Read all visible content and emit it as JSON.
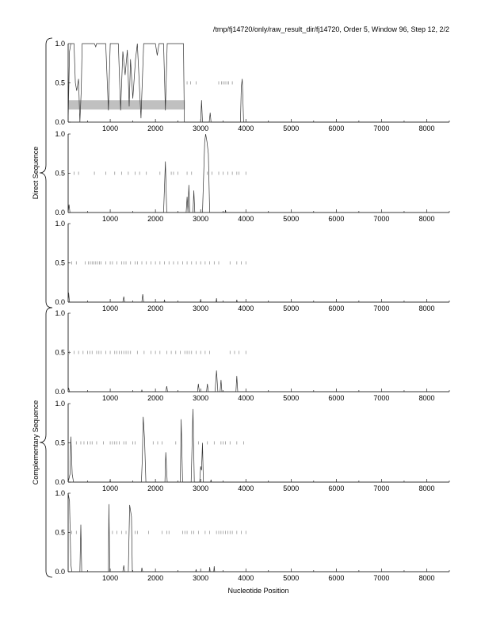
{
  "title": "/tmp/fj14720/only/raw_result_dir/fj14720, Order 5, Window 96, Step 12, 2/2",
  "group_labels": [
    "Direct Sequence",
    "Complementary Sequence"
  ],
  "chart_data": {
    "type": "line",
    "xlabel": "Nucleotide Position",
    "xlim": [
      70,
      8500
    ],
    "ylim": [
      0,
      1
    ],
    "x_ticks": [
      1000,
      2000,
      3000,
      4000,
      5000,
      6000,
      7000,
      8000
    ],
    "y_ticks": [
      "0.0",
      "0.5",
      "1.0"
    ],
    "grid": false,
    "colors": {
      "line": "#333333",
      "stop_ticks": "#888888",
      "highlight_bar": "#c0c0c0"
    },
    "panels": [
      {
        "group": "Direct Sequence",
        "highlight_region": {
          "x": [
            70,
            2650
          ],
          "y": [
            0.16,
            0.28
          ]
        },
        "points": [
          [
            70,
            0
          ],
          [
            100,
            0.9
          ],
          [
            130,
            1
          ],
          [
            200,
            1
          ],
          [
            230,
            0.5
          ],
          [
            260,
            0.4
          ],
          [
            300,
            0.55
          ],
          [
            330,
            0
          ],
          [
            360,
            0.4
          ],
          [
            380,
            1
          ],
          [
            650,
            1
          ],
          [
            680,
            0.96
          ],
          [
            700,
            1
          ],
          [
            900,
            1
          ],
          [
            960,
            0.15
          ],
          [
            1000,
            1
          ],
          [
            1180,
            1
          ],
          [
            1230,
            0.15
          ],
          [
            1280,
            0.9
          ],
          [
            1330,
            0.6
          ],
          [
            1380,
            0.92
          ],
          [
            1420,
            0.2
          ],
          [
            1450,
            0.8
          ],
          [
            1500,
            0.3
          ],
          [
            1560,
            0.8
          ],
          [
            1600,
            1
          ],
          [
            1680,
            0.05
          ],
          [
            1740,
            1
          ],
          [
            2000,
            1
          ],
          [
            2040,
            0.85
          ],
          [
            2080,
            1
          ],
          [
            2180,
            1
          ],
          [
            2220,
            0.15
          ],
          [
            2260,
            1
          ],
          [
            2620,
            1
          ],
          [
            2640,
            0
          ],
          [
            3000,
            0
          ],
          [
            3020,
            0.28
          ],
          [
            3040,
            0
          ],
          [
            3190,
            0
          ],
          [
            3210,
            0.12
          ],
          [
            3230,
            0
          ],
          [
            3880,
            0
          ],
          [
            3900,
            0.45
          ],
          [
            3920,
            0.55
          ],
          [
            3950,
            0
          ],
          [
            8500,
            0
          ]
        ],
        "stop_ticks": [
          2700,
          2780,
          2900,
          3400,
          3460,
          3500,
          3540,
          3580,
          3620,
          3700
        ]
      },
      {
        "group": "Direct Sequence",
        "points": [
          [
            70,
            0
          ],
          [
            90,
            0.1
          ],
          [
            110,
            0
          ],
          [
            2180,
            0
          ],
          [
            2220,
            0.65
          ],
          [
            2250,
            0
          ],
          [
            2680,
            0
          ],
          [
            2700,
            0.2
          ],
          [
            2720,
            0
          ],
          [
            2740,
            0.35
          ],
          [
            2760,
            0
          ],
          [
            2830,
            0
          ],
          [
            2850,
            0.28
          ],
          [
            2870,
            0
          ],
          [
            3040,
            0
          ],
          [
            3090,
            0.9
          ],
          [
            3110,
            1
          ],
          [
            3140,
            0.9
          ],
          [
            3170,
            0.75
          ],
          [
            3200,
            0
          ],
          [
            3540,
            0
          ],
          [
            3550,
            0.03
          ],
          [
            3560,
            0
          ],
          [
            8500,
            0
          ]
        ],
        "stop_ticks": [
          200,
          300,
          650,
          900,
          1100,
          1250,
          1400,
          1550,
          1650,
          1800,
          2100,
          2350,
          2400,
          2500,
          2700,
          2800,
          3150,
          3250,
          3400,
          3500,
          3600,
          3700,
          3800,
          3850,
          4000
        ]
      },
      {
        "group": "Direct Sequence",
        "points": [
          [
            70,
            0
          ],
          [
            80,
            0.12
          ],
          [
            100,
            0
          ],
          [
            1280,
            0
          ],
          [
            1300,
            0.07
          ],
          [
            1320,
            0
          ],
          [
            1700,
            0
          ],
          [
            1720,
            0.1
          ],
          [
            1740,
            0
          ],
          [
            2190,
            0
          ],
          [
            2200,
            0.03
          ],
          [
            2210,
            0
          ],
          [
            2990,
            0
          ],
          [
            3000,
            0.03
          ],
          [
            3010,
            0
          ],
          [
            3340,
            0
          ],
          [
            3350,
            0.05
          ],
          [
            3360,
            0
          ],
          [
            3790,
            0
          ],
          [
            3800,
            0.03
          ],
          [
            3810,
            0
          ],
          [
            8500,
            0
          ]
        ],
        "stop_ticks": [
          150,
          250,
          450,
          520,
          560,
          600,
          640,
          680,
          720,
          760,
          800,
          900,
          1000,
          1050,
          1150,
          1250,
          1300,
          1350,
          1450,
          1550,
          1600,
          1700,
          1800,
          1900,
          2000,
          2100,
          2200,
          2300,
          2400,
          2500,
          2600,
          2700,
          2800,
          2900,
          3000,
          3100,
          3200,
          3300,
          3400,
          3650,
          3800,
          3900,
          4000
        ]
      },
      {
        "group": "Complementary Sequence",
        "points": [
          [
            70,
            0
          ],
          [
            80,
            0.05
          ],
          [
            100,
            0
          ],
          [
            1690,
            0
          ],
          [
            1700,
            0.02
          ],
          [
            1710,
            0
          ],
          [
            2230,
            0
          ],
          [
            2250,
            0.07
          ],
          [
            2270,
            0
          ],
          [
            2930,
            0
          ],
          [
            2950,
            0.1
          ],
          [
            2970,
            0
          ],
          [
            3130,
            0
          ],
          [
            3150,
            0.1
          ],
          [
            3170,
            0
          ],
          [
            3320,
            0
          ],
          [
            3350,
            0.27
          ],
          [
            3380,
            0
          ],
          [
            3430,
            0
          ],
          [
            3450,
            0.15
          ],
          [
            3470,
            0
          ],
          [
            3780,
            0
          ],
          [
            3800,
            0.2
          ],
          [
            3820,
            0
          ],
          [
            8500,
            0
          ]
        ],
        "stop_ticks": [
          100,
          200,
          300,
          400,
          500,
          550,
          600,
          700,
          750,
          800,
          900,
          1000,
          1100,
          1150,
          1200,
          1250,
          1300,
          1350,
          1400,
          1450,
          1600,
          1750,
          1900,
          2000,
          2100,
          2250,
          2350,
          2450,
          2550,
          2650,
          2700,
          2750,
          2800,
          2900,
          3000,
          3100,
          3200,
          3650,
          3750,
          3850,
          4000
        ]
      },
      {
        "group": "Complementary Sequence",
        "points": [
          [
            70,
            0
          ],
          [
            110,
            0.1
          ],
          [
            130,
            0.58
          ],
          [
            160,
            0.1
          ],
          [
            190,
            0
          ],
          [
            990,
            0
          ],
          [
            1000,
            0.02
          ],
          [
            1010,
            0
          ],
          [
            1690,
            0
          ],
          [
            1710,
            0.3
          ],
          [
            1730,
            0.83
          ],
          [
            1760,
            0.55
          ],
          [
            1790,
            0
          ],
          [
            2210,
            0
          ],
          [
            2230,
            0.38
          ],
          [
            2260,
            0
          ],
          [
            2550,
            0
          ],
          [
            2570,
            0.8
          ],
          [
            2600,
            0
          ],
          [
            2790,
            0
          ],
          [
            2830,
            0.93
          ],
          [
            2860,
            0
          ],
          [
            2980,
            0
          ],
          [
            3000,
            0.2
          ],
          [
            3020,
            0.15
          ],
          [
            3040,
            0.5
          ],
          [
            3060,
            0
          ],
          [
            3220,
            0
          ],
          [
            3230,
            0.03
          ],
          [
            3240,
            0
          ],
          [
            8500,
            0
          ]
        ],
        "stop_ticks": [
          250,
          350,
          420,
          500,
          560,
          600,
          700,
          850,
          1000,
          1050,
          1100,
          1150,
          1200,
          1300,
          1350,
          1500,
          1550,
          1950,
          2050,
          2150,
          2450,
          2950,
          3150,
          3300,
          3450,
          3500,
          3550,
          3650,
          3800,
          3950
        ]
      },
      {
        "group": "Complementary Sequence",
        "points": [
          [
            70,
            1.0
          ],
          [
            100,
            0.9
          ],
          [
            130,
            0.1
          ],
          [
            150,
            0
          ],
          [
            330,
            0
          ],
          [
            350,
            0.6
          ],
          [
            370,
            0
          ],
          [
            960,
            0
          ],
          [
            970,
            0.86
          ],
          [
            990,
            0
          ],
          [
            1280,
            0
          ],
          [
            1300,
            0.08
          ],
          [
            1320,
            0
          ],
          [
            1400,
            0
          ],
          [
            1430,
            0.85
          ],
          [
            1470,
            0.7
          ],
          [
            1490,
            0
          ],
          [
            1690,
            0
          ],
          [
            1700,
            0.05
          ],
          [
            1720,
            0
          ],
          [
            2890,
            0
          ],
          [
            2900,
            0.03
          ],
          [
            2910,
            0
          ],
          [
            3190,
            0
          ],
          [
            3200,
            0.06
          ],
          [
            3210,
            0
          ],
          [
            3290,
            0
          ],
          [
            3300,
            0.07
          ],
          [
            3310,
            0
          ],
          [
            8500,
            0
          ]
        ],
        "stop_ticks": [
          150,
          250,
          1050,
          1150,
          1250,
          1350,
          1550,
          1600,
          1850,
          2150,
          2250,
          2300,
          2600,
          2650,
          2700,
          2800,
          2850,
          2950,
          3100,
          3200,
          3350,
          3400,
          3450,
          3500,
          3550,
          3600,
          3650,
          3700,
          3800,
          3900,
          4000
        ]
      }
    ]
  }
}
